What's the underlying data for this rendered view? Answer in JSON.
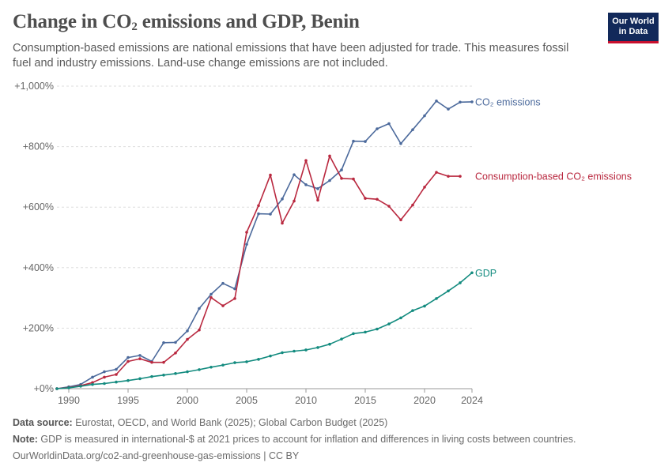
{
  "header": {
    "title_pre": "Change in CO",
    "title_sub": "2",
    "title_post": " emissions and GDP, Benin",
    "subtitle": "Consumption-based emissions are national emissions that have been adjusted for trade. This measures fossil fuel and industry emissions. Land-use change emissions are not included."
  },
  "logo": {
    "line1": "Our World",
    "line2": "in Data"
  },
  "footer": {
    "source_label": "Data source:",
    "source_text": " Eurostat, OECD, and World Bank (2025); Global Carbon Budget (2025)",
    "note_label": "Note:",
    "note_text": " GDP is measured in international-$ at 2021 prices to account for inflation and differences in living costs between countries.",
    "url": "OurWorldinData.org/co2-and-greenhouse-gas-emissions | CC BY"
  },
  "chart_data": {
    "type": "line",
    "ylim": [
      0,
      1000
    ],
    "xlim": [
      1989,
      2024
    ],
    "y_ticks": [
      0,
      200,
      400,
      600,
      800,
      1000
    ],
    "y_tick_labels": [
      "+0%",
      "+200%",
      "+400%",
      "+600%",
      "+800%",
      "+1,000%"
    ],
    "x_ticks": [
      1990,
      1995,
      2000,
      2005,
      2010,
      2015,
      2020,
      2024
    ],
    "x_tick_labels": [
      "1990",
      "1995",
      "2000",
      "2005",
      "2010",
      "2015",
      "2020",
      "2024"
    ],
    "grid": true,
    "series": [
      {
        "name": "CO₂ emissions",
        "color": "#4c6a9c",
        "x": [
          1989,
          1990,
          1991,
          1992,
          1993,
          1994,
          1995,
          1996,
          1997,
          1998,
          1999,
          2000,
          2001,
          2002,
          2003,
          2004,
          2005,
          2006,
          2007,
          2008,
          2009,
          2010,
          2011,
          2012,
          2013,
          2014,
          2015,
          2016,
          2017,
          2018,
          2019,
          2020,
          2021,
          2022,
          2023,
          2024
        ],
        "values": [
          0,
          6,
          14,
          38,
          56,
          64,
          103,
          110,
          90,
          152,
          153,
          191,
          265,
          312,
          348,
          330,
          477,
          578,
          577,
          627,
          707,
          674,
          661,
          688,
          723,
          818,
          817,
          859,
          876,
          810,
          856,
          902,
          951,
          924,
          947,
          948
        ]
      },
      {
        "name": "Consumption-based CO₂ emissions",
        "color": "#b9283f",
        "x": [
          1989,
          1990,
          1991,
          1992,
          1993,
          1994,
          1995,
          1996,
          1997,
          1998,
          1999,
          2000,
          2001,
          2002,
          2003,
          2004,
          2005,
          2006,
          2007,
          2008,
          2009,
          2010,
          2011,
          2012,
          2013,
          2014,
          2015,
          2016,
          2017,
          2018,
          2019,
          2020,
          2021,
          2022,
          2023
        ],
        "values": [
          0,
          4,
          10,
          20,
          38,
          47,
          90,
          99,
          87,
          87,
          118,
          163,
          194,
          301,
          274,
          298,
          517,
          605,
          706,
          547,
          620,
          754,
          623,
          769,
          695,
          693,
          629,
          626,
          603,
          558,
          607,
          666,
          715,
          702,
          702
        ]
      },
      {
        "name": "GDP",
        "color": "#138b7f",
        "x": [
          1989,
          1990,
          1991,
          1992,
          1993,
          1994,
          1995,
          1996,
          1997,
          1998,
          1999,
          2000,
          2001,
          2002,
          2003,
          2004,
          2005,
          2006,
          2007,
          2008,
          2009,
          2010,
          2011,
          2012,
          2013,
          2014,
          2015,
          2016,
          2017,
          2018,
          2019,
          2020,
          2021,
          2022,
          2023,
          2024
        ],
        "values": [
          0,
          3,
          8,
          14,
          17,
          22,
          27,
          33,
          40,
          45,
          50,
          56,
          63,
          71,
          78,
          86,
          89,
          97,
          108,
          119,
          124,
          128,
          136,
          147,
          164,
          182,
          187,
          197,
          214,
          234,
          258,
          273,
          298,
          323,
          350,
          383
        ]
      }
    ]
  }
}
